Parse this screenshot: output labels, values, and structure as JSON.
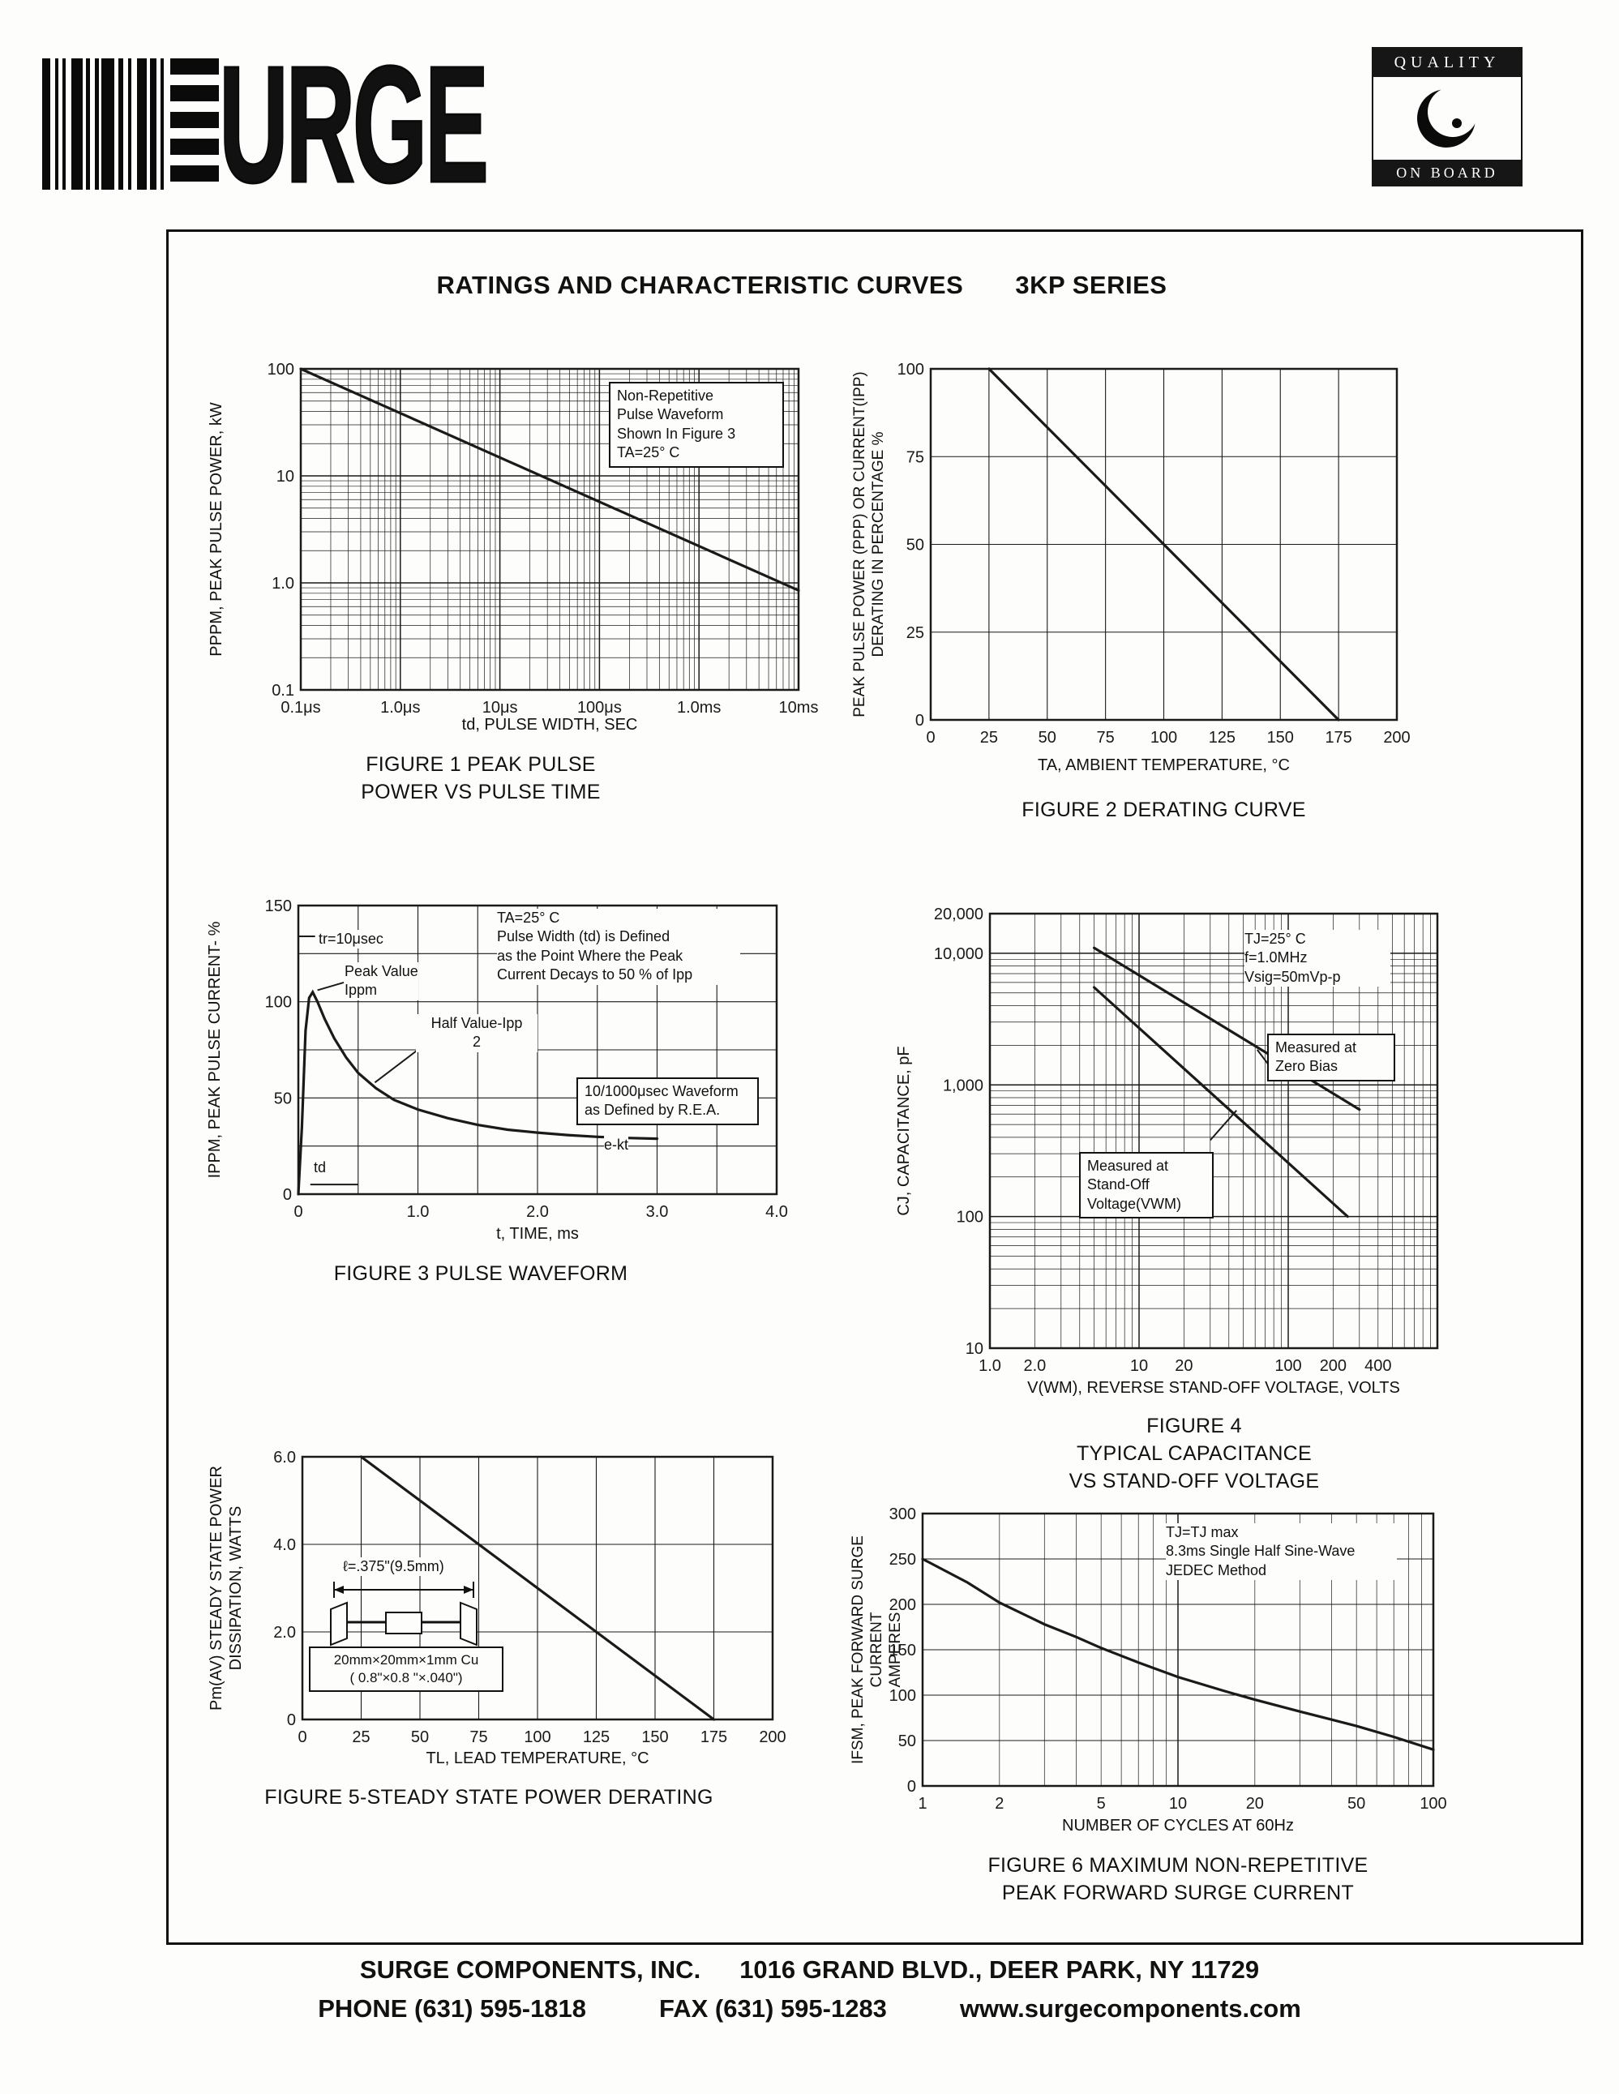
{
  "header": {
    "logo_text": "URGE",
    "badge_top": "QUALITY",
    "badge_bottom": "ON BOARD"
  },
  "title": "RATINGS AND CHARACTERISTIC CURVES",
  "series_name": "3KP SERIES",
  "figures": {
    "f1": {
      "ylabel": "PPPM, PEAK PULSE POWER, kW",
      "xlabel": "td, PULSE WIDTH, SEC",
      "caption": "FIGURE 1 PEAK PULSE\nPOWER VS PULSE TIME",
      "note_box": "Non-Repetitive\nPulse Waveform\nShown In Figure 3\nTA=25° C"
    },
    "f2": {
      "ylabel": "PEAK PULSE POWER (PPP) OR CURRENT(IPP)\nDERATING IN PERCENTAGE %",
      "xlabel": "TA, AMBIENT TEMPERATURE, °C",
      "caption": "FIGURE 2 DERATING CURVE"
    },
    "f3": {
      "ylabel": "IPPM, PEAK PULSE CURRENT- %",
      "xlabel": "t, TIME, ms",
      "caption": "FIGURE 3 PULSE WAVEFORM",
      "note_ta": "TA=25° C\nPulse Width (td) is Defined\nas the Point Where the Peak\nCurrent Decays to 50 % of Ipp",
      "note_tr": "tr=10μsec",
      "note_peak": "Peak Value\nIppm",
      "note_half": "Half Value-Ipp\n2",
      "note_rea": "10/1000μsec Waveform\nas Defined by R.E.A.",
      "note_ekt": "e-kt",
      "note_td": "td"
    },
    "f4": {
      "ylabel": "CJ, CAPACITANCE, pF",
      "xlabel": "V(WM), REVERSE STAND-OFF VOLTAGE, VOLTS",
      "caption": "FIGURE 4\nTYPICAL CAPACITANCE\nVS STAND-OFF VOLTAGE",
      "note_cond": "TJ=25° C\nf=1.0MHz\nVsig=50mVp-p",
      "note_zero": "Measured at\nZero Bias",
      "note_standoff": "Measured at\nStand-Off\nVoltage(VWM)"
    },
    "f5": {
      "ylabel": "Pm(AV) STEADY STATE POWER\nDISSIPATION, WATTS",
      "xlabel": "TL, LEAD TEMPERATURE, °C",
      "caption": "FIGURE 5-STEADY STATE POWER DERATING",
      "note_len": "ℓ=.375\"(9.5mm)",
      "note_cu": "20mm×20mm×1mm Cu\n( 0.8\"×0.8 \"×.040\")"
    },
    "f6": {
      "ylabel": "IFSM, PEAK FORWARD SURGE CURRENT\nAMPERES",
      "xlabel": "NUMBER OF CYCLES AT 60Hz",
      "caption": "FIGURE 6 MAXIMUM NON-REPETITIVE\nPEAK FORWARD SURGE CURRENT",
      "note_cond": "TJ=TJ max\n8.3ms Single Half Sine-Wave\nJEDEC Method"
    }
  },
  "footer": {
    "company": "SURGE COMPONENTS, INC.",
    "address": "1016 GRAND BLVD., DEER PARK, NY  11729",
    "phone": "PHONE (631) 595-1818",
    "fax": "FAX (631) 595-1283",
    "web": "www.surgecomponents.com"
  },
  "chart_data": [
    {
      "id": "chart-f1",
      "type": "line",
      "title": "FIGURE 1 PEAK PULSE POWER VS PULSE TIME",
      "xlabel": "td, PULSE WIDTH, SEC",
      "ylabel": "PPPM, PEAK PULSE POWER, kW",
      "xscale": "log",
      "xmin": 1e-07,
      "xmax": 0.01,
      "yscale": "log",
      "ymin": 0.1,
      "ymax": 100,
      "xticks": [
        {
          "v": 1e-07,
          "label": "0.1μs"
        },
        {
          "v": 1e-06,
          "label": "1.0μs"
        },
        {
          "v": 1e-05,
          "label": "10μs"
        },
        {
          "v": 0.0001,
          "label": "100μs"
        },
        {
          "v": 0.001,
          "label": "1.0ms"
        },
        {
          "v": 0.01,
          "label": "10ms"
        }
      ],
      "yticks": [
        {
          "v": 100,
          "label": "100"
        },
        {
          "v": 10,
          "label": "10"
        },
        {
          "v": 1,
          "label": "1.0"
        },
        {
          "v": 0.1,
          "label": "0.1"
        }
      ],
      "series": [
        {
          "name": "peak-pulse-power-kW",
          "points": [
            [
              1e-07,
              100
            ],
            [
              0.01,
              0.85
            ]
          ]
        }
      ]
    },
    {
      "id": "chart-f2",
      "type": "line",
      "title": "FIGURE 2 DERATING CURVE",
      "xlabel": "TA, AMBIENT TEMPERATURE, °C",
      "ylabel": "PEAK PULSE POWER (PPP) OR CURRENT(IPP) DERATING IN PERCENTAGE %",
      "xscale": "linear",
      "xmin": 0,
      "xmax": 200,
      "xgrid": 25,
      "yscale": "linear",
      "ymin": 0,
      "ymax": 100,
      "ygrid": 25,
      "xticks": [
        {
          "v": 0,
          "label": "0"
        },
        {
          "v": 25,
          "label": "25"
        },
        {
          "v": 50,
          "label": "50"
        },
        {
          "v": 75,
          "label": "75"
        },
        {
          "v": 100,
          "label": "100"
        },
        {
          "v": 125,
          "label": "125"
        },
        {
          "v": 150,
          "label": "150"
        },
        {
          "v": 175,
          "label": "175"
        },
        {
          "v": 200,
          "label": "200"
        }
      ],
      "yticks": [
        {
          "v": 100,
          "label": "100"
        },
        {
          "v": 75,
          "label": "75"
        },
        {
          "v": 50,
          "label": "50"
        },
        {
          "v": 25,
          "label": "25"
        },
        {
          "v": 0,
          "label": "0"
        }
      ],
      "series": [
        {
          "name": "derating-percent",
          "points": [
            [
              25,
              100
            ],
            [
              175,
              0
            ]
          ]
        }
      ]
    },
    {
      "id": "chart-f3",
      "type": "line",
      "title": "FIGURE 3 PULSE WAVEFORM",
      "xlabel": "t, TIME, ms",
      "ylabel": "IPPM, PEAK PULSE CURRENT- %",
      "xscale": "linear",
      "xmin": 0,
      "xmax": 4,
      "xgrid": 0.5,
      "yscale": "linear",
      "ymin": 0,
      "ymax": 150,
      "ygrid": 25,
      "xticks": [
        {
          "v": 0,
          "label": "0"
        },
        {
          "v": 1,
          "label": "1.0"
        },
        {
          "v": 2,
          "label": "2.0"
        },
        {
          "v": 3,
          "label": "3.0"
        },
        {
          "v": 4,
          "label": "4.0"
        }
      ],
      "yticks": [
        {
          "v": 150,
          "label": "150"
        },
        {
          "v": 100,
          "label": "100"
        },
        {
          "v": 50,
          "label": "50"
        },
        {
          "v": 0,
          "label": "0"
        }
      ],
      "series": [
        {
          "name": "pulse-waveform-percent",
          "points": [
            [
              0,
              0
            ],
            [
              0.03,
              35
            ],
            [
              0.06,
              85
            ],
            [
              0.09,
              102
            ],
            [
              0.12,
              105
            ],
            [
              0.16,
              100
            ],
            [
              0.22,
              91
            ],
            [
              0.3,
              81
            ],
            [
              0.4,
              71
            ],
            [
              0.5,
              63
            ],
            [
              0.65,
              55
            ],
            [
              0.8,
              49
            ],
            [
              1.0,
              44
            ],
            [
              1.25,
              39.5
            ],
            [
              1.5,
              36
            ],
            [
              1.75,
              33.5
            ],
            [
              2.0,
              32
            ],
            [
              2.25,
              30.7
            ],
            [
              2.5,
              29.8
            ],
            [
              2.75,
              29.2
            ],
            [
              3.0,
              28.8
            ]
          ]
        }
      ],
      "lines": [
        {
          "x1": 0,
          "y1": 134,
          "x2": 0.14,
          "y2": 134
        },
        {
          "x1": 0.38,
          "y1": 110,
          "x2": 0.16,
          "y2": 106
        },
        {
          "x1": 1.02,
          "y1": 76,
          "x2": 0.64,
          "y2": 58
        },
        {
          "x1": 0.1,
          "y1": 5,
          "x2": 0.5,
          "y2": 5
        }
      ]
    },
    {
      "id": "chart-f4",
      "type": "line",
      "title": "FIGURE 4 TYPICAL CAPACITANCE VS STAND-OFF VOLTAGE",
      "xlabel": "V(WM), REVERSE STAND-OFF VOLTAGE, VOLTS",
      "ylabel": "CJ, CAPACITANCE, pF",
      "xscale": "log",
      "xmin": 1,
      "xmax": 1000,
      "yscale": "log",
      "ymin": 10,
      "ymax": 20000,
      "xticks": [
        {
          "v": 1,
          "label": "1.0"
        },
        {
          "v": 2,
          "label": "2.0"
        },
        {
          "v": 10,
          "label": "10"
        },
        {
          "v": 20,
          "label": "20"
        },
        {
          "v": 100,
          "label": "100"
        },
        {
          "v": 200,
          "label": "200"
        },
        {
          "v": 400,
          "label": "400"
        }
      ],
      "yticks": [
        {
          "v": 20000,
          "label": "20,000"
        },
        {
          "v": 10000,
          "label": "10,000"
        },
        {
          "v": 1000,
          "label": "1,000"
        },
        {
          "v": 100,
          "label": "100"
        },
        {
          "v": 10,
          "label": "10"
        }
      ],
      "series": [
        {
          "name": "measured-at-zero-bias",
          "points": [
            [
              5,
              11000
            ],
            [
              300,
              650
            ]
          ]
        },
        {
          "name": "measured-at-stand-off-voltage",
          "points": [
            [
              5,
              5500
            ],
            [
              250,
              100
            ]
          ]
        }
      ],
      "lines": [
        {
          "x1": 85,
          "y1": 1150,
          "x2": 62,
          "y2": 1850
        },
        {
          "x1": 30,
          "y1": 380,
          "x2": 45,
          "y2": 640
        }
      ]
    },
    {
      "id": "chart-f5",
      "type": "line",
      "title": "FIGURE 5-STEADY STATE POWER DERATING",
      "xlabel": "TL, LEAD TEMPERATURE, °C",
      "ylabel": "Pm(AV) STEADY STATE POWER DISSIPATION, WATTS",
      "xscale": "linear",
      "xmin": 0,
      "xmax": 200,
      "xgrid": 25,
      "yscale": "linear",
      "ymin": 0,
      "ymax": 6,
      "ygrid": 2,
      "xticks": [
        {
          "v": 0,
          "label": "0"
        },
        {
          "v": 25,
          "label": "25"
        },
        {
          "v": 50,
          "label": "50"
        },
        {
          "v": 75,
          "label": "75"
        },
        {
          "v": 100,
          "label": "100"
        },
        {
          "v": 125,
          "label": "125"
        },
        {
          "v": 150,
          "label": "150"
        },
        {
          "v": 175,
          "label": "175"
        },
        {
          "v": 200,
          "label": "200"
        }
      ],
      "yticks": [
        {
          "v": 6,
          "label": "6.0"
        },
        {
          "v": 4,
          "label": "4.0"
        },
        {
          "v": 2,
          "label": "2.0"
        },
        {
          "v": 0,
          "label": "0"
        }
      ],
      "series": [
        {
          "name": "steady-state-power-watts",
          "points": [
            [
              25,
              6
            ],
            [
              175,
              0
            ]
          ]
        }
      ]
    },
    {
      "id": "chart-f6",
      "type": "line",
      "title": "FIGURE 6 MAXIMUM NON-REPETITIVE PEAK FORWARD SURGE CURRENT",
      "xlabel": "NUMBER OF CYCLES AT 60Hz",
      "ylabel": "IFSM, PEAK FORWARD SURGE CURRENT AMPERES",
      "xscale": "log",
      "xmin": 1,
      "xmax": 100,
      "yscale": "linear",
      "ymin": 0,
      "ymax": 300,
      "ygrid": 50,
      "xticks": [
        {
          "v": 1,
          "label": "1"
        },
        {
          "v": 2,
          "label": "2"
        },
        {
          "v": 5,
          "label": "5"
        },
        {
          "v": 10,
          "label": "10"
        },
        {
          "v": 20,
          "label": "20"
        },
        {
          "v": 50,
          "label": "50"
        },
        {
          "v": 100,
          "label": "100"
        }
      ],
      "yticks": [
        {
          "v": 300,
          "label": "300"
        },
        {
          "v": 250,
          "label": "250"
        },
        {
          "v": 200,
          "label": "200"
        },
        {
          "v": 150,
          "label": "150"
        },
        {
          "v": 100,
          "label": "100"
        },
        {
          "v": 50,
          "label": "50"
        },
        {
          "v": 0,
          "label": "0"
        }
      ],
      "series": [
        {
          "name": "peak-forward-surge-current-amperes",
          "points": [
            [
              1,
              250
            ],
            [
              1.5,
              224
            ],
            [
              2,
              202
            ],
            [
              3,
              178
            ],
            [
              4,
              164
            ],
            [
              5,
              152
            ],
            [
              7,
              136
            ],
            [
              10,
              120
            ],
            [
              15,
              105
            ],
            [
              20,
              95
            ],
            [
              30,
              82
            ],
            [
              40,
              73
            ],
            [
              50,
              66
            ],
            [
              70,
              54
            ],
            [
              100,
              40
            ]
          ]
        }
      ]
    }
  ]
}
